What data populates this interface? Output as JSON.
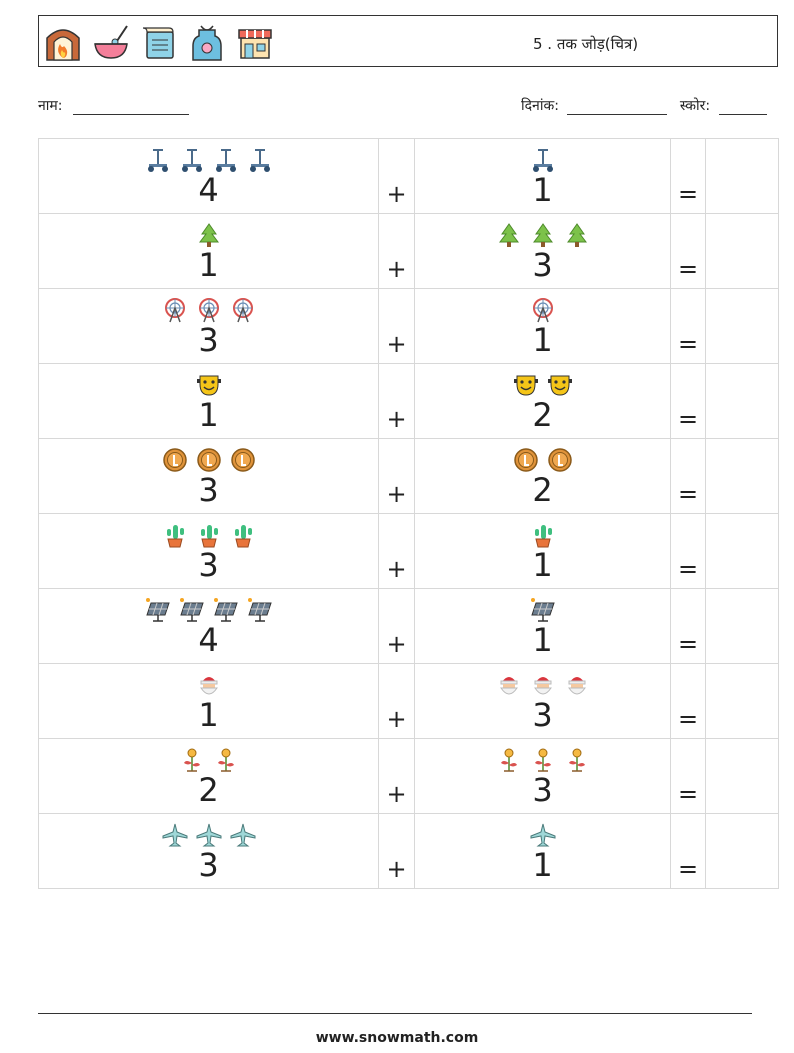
{
  "header": {
    "title": "5 . तक जोड़(चित्र)",
    "icons": [
      "fireplace-icon",
      "mixing-bowl-icon",
      "recipe-scroll-icon",
      "apron-icon",
      "shop-icon"
    ]
  },
  "meta": {
    "name_label": "नाम:",
    "date_label": "दिनांक:",
    "score_label": "स्कोर:"
  },
  "operators": {
    "plus": "+",
    "equals": "="
  },
  "rows": [
    {
      "icon": "scooter",
      "a": 4,
      "b": 1
    },
    {
      "icon": "pine-tree",
      "a": 1,
      "b": 3
    },
    {
      "icon": "ferris-wheel",
      "a": 3,
      "b": 1
    },
    {
      "icon": "theater-mask",
      "a": 1,
      "b": 2
    },
    {
      "icon": "coin",
      "a": 3,
      "b": 2
    },
    {
      "icon": "cactus",
      "a": 3,
      "b": 1
    },
    {
      "icon": "solar-panel",
      "a": 4,
      "b": 1
    },
    {
      "icon": "santa",
      "a": 1,
      "b": 3
    },
    {
      "icon": "flower-sprout",
      "a": 2,
      "b": 3
    },
    {
      "icon": "airplane",
      "a": 3,
      "b": 1
    }
  ],
  "footer": {
    "url": "www.snowmath.com"
  },
  "colors": {
    "border": "#d8d8d8",
    "text": "#222222"
  }
}
